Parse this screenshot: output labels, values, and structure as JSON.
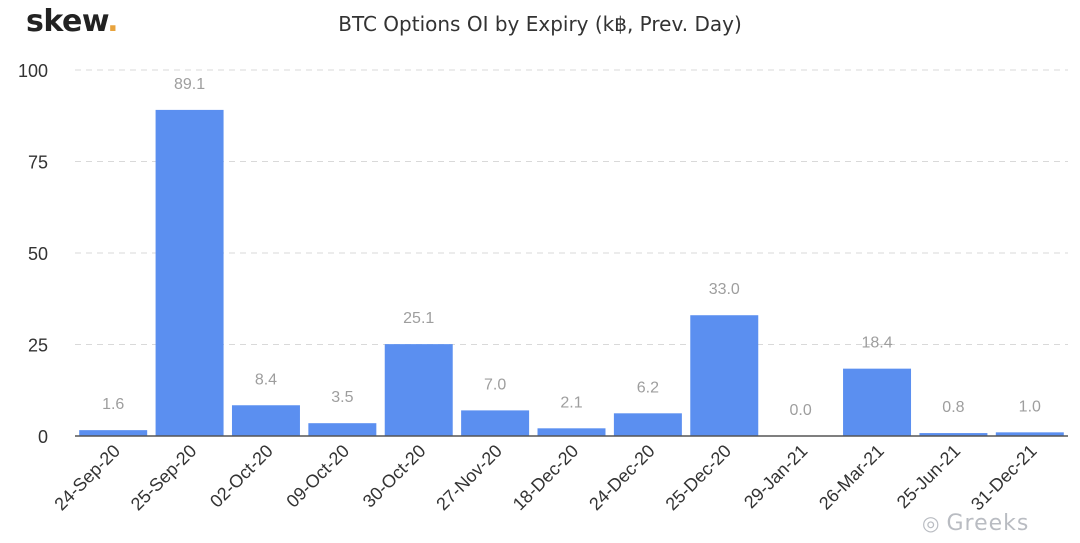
{
  "logo": {
    "text": "skew",
    "dot": "."
  },
  "colors": {
    "bar": "#5b8ff0",
    "bar_dark": "#4a7be0",
    "grid": "#d9d9d9",
    "label": "#9e9e9e",
    "axis": "#333333"
  },
  "watermark": {
    "icon": "wechat-icon",
    "text": "Greeks"
  },
  "chart_data": {
    "type": "bar",
    "title": "BTC Options OI by Expiry (k฿, Prev. Day)",
    "xlabel": "",
    "ylabel": "",
    "ylim": [
      0,
      100
    ],
    "yticks": [
      "0",
      "25",
      "50",
      "75",
      "100"
    ],
    "grid": "horizontal-dashed",
    "categories": [
      "24-Sep-20",
      "25-Sep-20",
      "02-Oct-20",
      "09-Oct-20",
      "30-Oct-20",
      "27-Nov-20",
      "18-Dec-20",
      "24-Dec-20",
      "25-Dec-20",
      "29-Jan-21",
      "26-Mar-21",
      "25-Jun-21",
      "31-Dec-21"
    ],
    "values": [
      1.6,
      89.1,
      8.4,
      3.5,
      25.1,
      7.0,
      2.1,
      6.2,
      33.0,
      0.0,
      18.4,
      0.8,
      1.0
    ],
    "data_labels": [
      "1.6",
      "89.1",
      "8.4",
      "3.5",
      "25.1",
      "7.0",
      "2.1",
      "6.2",
      "33.0",
      "0.0",
      "18.4",
      "0.8",
      "1.0"
    ]
  }
}
